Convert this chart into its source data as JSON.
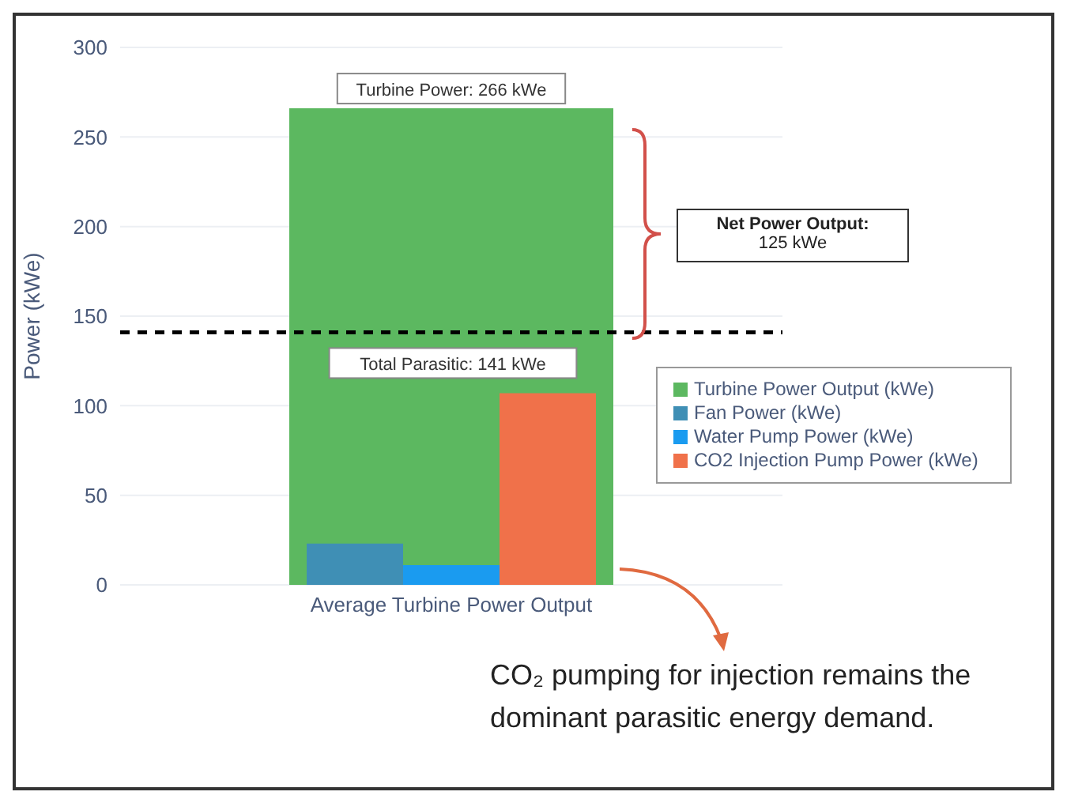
{
  "chart_data": {
    "type": "bar",
    "ylabel": "Power (kWe)",
    "categories": [
      "Average Turbine Power Output"
    ],
    "series": [
      {
        "name": "Turbine Power Output (kWe)",
        "color": "#5cb860",
        "values": [
          266
        ]
      },
      {
        "name": "Fan Power (kWe)",
        "color": "#3f8fb5",
        "values": [
          23
        ]
      },
      {
        "name": "Water Pump Power (kWe)",
        "color": "#1a9bf0",
        "values": [
          11
        ]
      },
      {
        "name": "CO2 Injection Pump Power (kWe)",
        "color": "#f0714a",
        "values": [
          107
        ]
      }
    ],
    "ylim": [
      0,
      300
    ],
    "yticks": [
      0,
      50,
      100,
      150,
      200,
      250,
      300
    ],
    "grid": "y",
    "legend": "right",
    "ref_lines": [
      {
        "axis": "y",
        "value": 141,
        "label": "Total Parasitic: 141 kWe",
        "color": "#000000",
        "line_style": "dashed"
      }
    ],
    "annotations": [
      {
        "text": "Turbine Power: 266 kWe",
        "x": "Average Turbine Power Output",
        "y": 266
      },
      "Net Power Output:\n125 kWe",
      "CO₂ pumping for injection remains the dominant parasitic energy demand."
    ]
  }
}
